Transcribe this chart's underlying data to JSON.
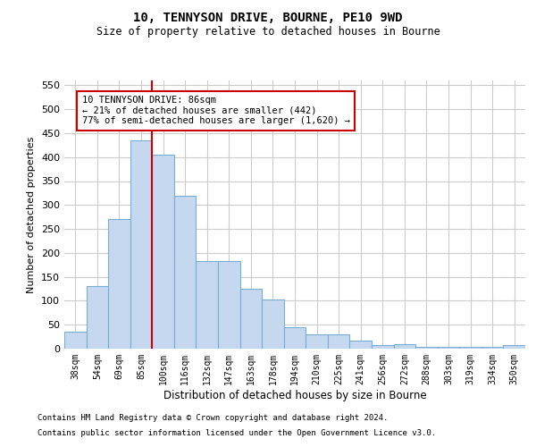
{
  "title": "10, TENNYSON DRIVE, BOURNE, PE10 9WD",
  "subtitle": "Size of property relative to detached houses in Bourne",
  "xlabel": "Distribution of detached houses by size in Bourne",
  "ylabel": "Number of detached properties",
  "categories": [
    "38sqm",
    "54sqm",
    "69sqm",
    "85sqm",
    "100sqm",
    "116sqm",
    "132sqm",
    "147sqm",
    "163sqm",
    "178sqm",
    "194sqm",
    "210sqm",
    "225sqm",
    "241sqm",
    "256sqm",
    "272sqm",
    "288sqm",
    "303sqm",
    "319sqm",
    "334sqm",
    "350sqm"
  ],
  "values": [
    35,
    130,
    270,
    435,
    405,
    320,
    183,
    183,
    125,
    103,
    45,
    29,
    29,
    17,
    8,
    9,
    4,
    4,
    4,
    4,
    7
  ],
  "bar_color": "#c5d8f0",
  "bar_edge_color": "#7aadd4",
  "red_line_x": 3.5,
  "annotation_text": "10 TENNYSON DRIVE: 86sqm\n← 21% of detached houses are smaller (442)\n77% of semi-detached houses are larger (1,620) →",
  "annotation_box_color": "#ffffff",
  "annotation_box_edge": "#cc0000",
  "red_line_color": "#cc0000",
  "footer1": "Contains HM Land Registry data © Crown copyright and database right 2024.",
  "footer2": "Contains public sector information licensed under the Open Government Licence v3.0.",
  "ylim": [
    0,
    560
  ],
  "background_color": "#ffffff",
  "grid_color": "#cccccc"
}
